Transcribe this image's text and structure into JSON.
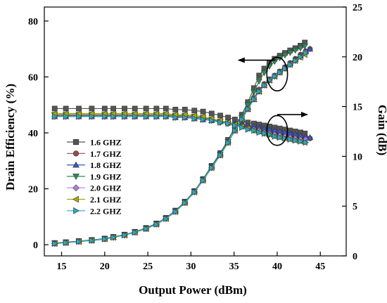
{
  "chart_data": {
    "type": "line",
    "xlabel": "Output Power (dBm)",
    "ylabel_left": "Drain Efficiency (%)",
    "ylabel_right": "Gain (dB)",
    "xlim": [
      13,
      48
    ],
    "ylim_left": [
      -4,
      85
    ],
    "ylim_right": [
      0,
      25
    ],
    "xticks": [
      15,
      20,
      25,
      30,
      35,
      40,
      45
    ],
    "yticks_left": [
      0,
      20,
      40,
      60,
      80
    ],
    "yticks_right": [
      0,
      5,
      10,
      15,
      20,
      25
    ],
    "grid": false,
    "legend_position": "center-left",
    "series": [
      {
        "name": "1.6 GHZ",
        "color": "#555555",
        "marker": "square",
        "x": [
          14.2,
          15.5,
          17,
          18.5,
          20,
          21,
          22.3,
          23.5,
          24.8,
          26,
          27.1,
          28.2,
          29.3,
          30.4,
          31.4,
          32.4,
          33.4,
          34.3,
          35.1,
          35.9,
          36.6,
          37.3,
          37.9,
          38.5,
          39.1,
          39.7,
          40.3,
          40.9,
          41.5,
          42.1,
          42.7,
          43.2
        ],
        "efficiency": [
          0.6,
          0.9,
          1.3,
          1.7,
          2.2,
          2.8,
          3.6,
          4.6,
          6,
          7.6,
          9.6,
          12.2,
          15.4,
          19.2,
          23.5,
          28.2,
          32.8,
          37.5,
          42,
          46.5,
          51,
          56,
          60.5,
          63,
          65,
          66.5,
          67.6,
          68.6,
          69.5,
          70.3,
          71.2,
          72.3
        ],
        "gain": [
          14.8,
          14.8,
          14.8,
          14.8,
          14.8,
          14.8,
          14.8,
          14.8,
          14.8,
          14.8,
          14.8,
          14.7,
          14.7,
          14.6,
          14.5,
          14.3,
          14.1,
          13.9,
          13.7,
          13.6,
          13.4,
          13.3,
          13.2,
          13.1,
          13.0,
          12.9,
          12.8,
          12.7,
          12.6,
          12.5,
          12.4,
          12.3
        ]
      },
      {
        "name": "1.7 GHZ",
        "color": "#9e4a4a",
        "marker": "circle",
        "x": [
          14.2,
          15.5,
          17,
          18.5,
          20,
          21,
          22.3,
          23.5,
          24.8,
          26,
          27.1,
          28.2,
          29.3,
          30.4,
          31.4,
          32.4,
          33.4,
          34.3,
          35.1,
          35.9,
          36.6,
          37.3,
          37.9,
          38.5,
          39.1,
          39.7,
          40.3,
          40.9,
          41.5,
          42.1,
          42.7,
          43.3,
          43.8
        ],
        "efficiency": [
          0.5,
          0.8,
          1.2,
          1.6,
          2.1,
          2.7,
          3.5,
          4.5,
          5.8,
          7.4,
          9.4,
          12,
          15.2,
          19,
          23.2,
          27.8,
          32.3,
          36.8,
          41,
          45,
          48.8,
          52.5,
          55.5,
          57.5,
          59.2,
          60.5,
          62,
          63.5,
          65,
          66.5,
          68,
          69.2,
          70
        ],
        "gain": [
          14.1,
          14.1,
          14.1,
          14.1,
          14.1,
          14.1,
          14.1,
          14.1,
          14.1,
          14.1,
          14.1,
          14.0,
          14.0,
          13.9,
          13.8,
          13.6,
          13.5,
          13.3,
          13.2,
          13.1,
          13.0,
          12.9,
          12.8,
          12.7,
          12.6,
          12.5,
          12.4,
          12.3,
          12.2,
          12.1,
          12.0,
          11.9,
          11.8
        ]
      },
      {
        "name": "1.8 GHZ",
        "color": "#3a55c8",
        "marker": "triangle-up",
        "x": [
          14.2,
          15.5,
          17,
          18.5,
          20,
          21,
          22.3,
          23.5,
          24.8,
          26,
          27.1,
          28.2,
          29.3,
          30.4,
          31.4,
          32.4,
          33.4,
          34.3,
          35.1,
          35.9,
          36.6,
          37.3,
          37.9,
          38.5,
          39.1,
          39.7,
          40.3,
          40.9,
          41.5,
          42.1,
          42.7,
          43.3,
          43.8
        ],
        "efficiency": [
          0.5,
          0.8,
          1.2,
          1.6,
          2.1,
          2.7,
          3.5,
          4.5,
          5.8,
          7.4,
          9.4,
          12,
          15.2,
          19,
          23.2,
          27.8,
          32.3,
          36.8,
          41,
          45,
          48.5,
          52,
          54.8,
          57,
          58.8,
          60.3,
          61.8,
          63.3,
          64.8,
          66.2,
          67.6,
          69,
          70
        ],
        "gain": [
          14.0,
          14.0,
          14.0,
          14.0,
          14.0,
          14.0,
          14.0,
          14.0,
          14.0,
          14.0,
          14.0,
          13.9,
          13.9,
          13.8,
          13.7,
          13.6,
          13.5,
          13.4,
          13.3,
          13.2,
          13.1,
          13.0,
          12.9,
          12.8,
          12.7,
          12.6,
          12.5,
          12.4,
          12.3,
          12.2,
          12.1,
          12.0,
          11.9
        ]
      },
      {
        "name": "1.9 GHZ",
        "color": "#2e8b57",
        "marker": "triangle-down",
        "x": [
          14.2,
          15.5,
          17,
          18.5,
          20,
          21,
          22.3,
          23.5,
          24.8,
          26,
          27.1,
          28.2,
          29.3,
          30.4,
          31.4,
          32.4,
          33.4,
          34.3,
          35.1,
          35.9,
          36.6,
          37.3,
          37.9,
          38.5,
          39.1,
          39.7,
          40.3,
          40.9,
          41.5,
          42.1,
          42.7,
          43.2
        ],
        "efficiency": [
          0.5,
          0.8,
          1.2,
          1.6,
          2.1,
          2.7,
          3.5,
          4.5,
          5.8,
          7.4,
          9.4,
          12,
          15.2,
          19,
          23.2,
          27.8,
          32.3,
          36.8,
          41,
          45.5,
          50,
          54.5,
          58.5,
          61.5,
          63.8,
          65.5,
          66.8,
          67.8,
          68.7,
          69.5,
          70.3,
          71
        ],
        "gain": [
          14.2,
          14.2,
          14.2,
          14.2,
          14.2,
          14.2,
          14.2,
          14.2,
          14.2,
          14.2,
          14.2,
          14.1,
          14.1,
          14.0,
          13.9,
          13.7,
          13.5,
          13.3,
          13.1,
          13.0,
          12.8,
          12.6,
          12.5,
          12.3,
          12.2,
          12.1,
          12.0,
          11.9,
          11.8,
          11.7,
          11.6,
          11.5
        ]
      },
      {
        "name": "2.0 GHZ",
        "color": "#b57edc",
        "marker": "diamond",
        "x": [
          14.2,
          15.5,
          17,
          18.5,
          20,
          21,
          22.3,
          23.5,
          24.8,
          26,
          27.1,
          28.2,
          29.3,
          30.4,
          31.4,
          32.4,
          33.4,
          34.3,
          35.1,
          35.9,
          36.6,
          37.3,
          37.9,
          38.5,
          39.1,
          39.7,
          40.3,
          40.9,
          41.5,
          42.1,
          42.7,
          43.3
        ],
        "efficiency": [
          0.4,
          0.7,
          1.1,
          1.5,
          2,
          2.6,
          3.4,
          4.4,
          5.7,
          7.3,
          9.3,
          11.8,
          15,
          18.8,
          23,
          27.5,
          32,
          36.5,
          40.8,
          44.8,
          48.5,
          52,
          54.8,
          57,
          58.8,
          60.2,
          61.6,
          63,
          64.4,
          65.8,
          67.2,
          68.8
        ],
        "gain": [
          14.0,
          14.0,
          14.0,
          14.0,
          14.0,
          14.0,
          14.0,
          14.0,
          14.0,
          14.0,
          14.0,
          13.9,
          13.9,
          13.8,
          13.7,
          13.6,
          13.4,
          13.3,
          13.1,
          13.0,
          12.8,
          12.7,
          12.6,
          12.4,
          12.3,
          12.2,
          12.1,
          12.0,
          11.9,
          11.8,
          11.7,
          11.7
        ]
      },
      {
        "name": "2.1 GHZ",
        "color": "#a8a800",
        "marker": "triangle-left",
        "x": [
          14.2,
          15.5,
          17,
          18.5,
          20,
          21,
          22.3,
          23.5,
          24.8,
          26,
          27.1,
          28.2,
          29.3,
          30.4,
          31.4,
          32.4,
          33.4,
          34.3,
          35.1,
          35.9,
          36.6,
          37.3,
          37.9,
          38.5,
          39.1,
          39.7,
          40.3,
          40.9,
          41.5,
          42.1,
          42.7,
          43.2
        ],
        "efficiency": [
          0.4,
          0.7,
          1.1,
          1.5,
          2,
          2.6,
          3.4,
          4.4,
          5.7,
          7.3,
          9.3,
          11.8,
          15,
          18.8,
          23,
          27.5,
          32,
          36.5,
          40.8,
          44.8,
          48.5,
          52,
          54.8,
          57,
          58.8,
          60.2,
          61.6,
          63,
          64.4,
          65.8,
          67,
          68
        ],
        "gain": [
          14.3,
          14.3,
          14.3,
          14.3,
          14.3,
          14.3,
          14.3,
          14.3,
          14.3,
          14.3,
          14.3,
          14.2,
          14.2,
          14.1,
          14.0,
          13.8,
          13.6,
          13.4,
          13.2,
          13.0,
          12.8,
          12.6,
          12.5,
          12.3,
          12.2,
          12.0,
          11.9,
          11.8,
          11.7,
          11.6,
          11.5,
          11.4
        ]
      },
      {
        "name": "2.2 GHZ",
        "color": "#2aa8c4",
        "marker": "triangle-right",
        "x": [
          14.2,
          15.5,
          17,
          18.5,
          20,
          21,
          22.3,
          23.5,
          24.8,
          26,
          27.1,
          28.2,
          29.3,
          30.4,
          31.4,
          32.4,
          33.4,
          34.3,
          35.1,
          35.9,
          36.6,
          37.3,
          37.9,
          38.5,
          39.1,
          39.7,
          40.3,
          40.9,
          41.5,
          42.1,
          42.7,
          43.3
        ],
        "efficiency": [
          0.4,
          0.7,
          1.1,
          1.5,
          2,
          2.6,
          3.4,
          4.4,
          5.7,
          7.3,
          9.3,
          11.8,
          15,
          18.8,
          23,
          27.5,
          32,
          36.5,
          40.8,
          44.8,
          48.5,
          52,
          54.8,
          57,
          58.8,
          60.2,
          61.6,
          63,
          64.4,
          65.8,
          67.2,
          68.6
        ],
        "gain": [
          14.0,
          14.0,
          14.0,
          14.0,
          14.0,
          14.0,
          14.0,
          14.0,
          14.0,
          14.0,
          14.0,
          13.9,
          13.9,
          13.8,
          13.7,
          13.6,
          13.4,
          13.3,
          13.1,
          12.9,
          12.7,
          12.6,
          12.4,
          12.3,
          12.2,
          12.0,
          11.9,
          11.8,
          11.7,
          11.6,
          11.5,
          11.4
        ]
      }
    ],
    "annotations": [
      {
        "type": "ellipse",
        "target": "efficiency",
        "cx": 40,
        "cy_left": 61,
        "rx_data": 1.2,
        "ry_left": 6
      },
      {
        "type": "arrow",
        "direction": "left",
        "target_axis": "left",
        "from_x": 39.8,
        "to_x": 35.5,
        "y_left": 66
      },
      {
        "type": "ellipse",
        "target": "gain",
        "cx": 40,
        "cy_right": 12.6,
        "rx_data": 1.2,
        "ry_right": 1.5
      },
      {
        "type": "arrow",
        "direction": "right",
        "target_axis": "right",
        "from_x": 40,
        "to_x": 43.5,
        "y_right": 14.2
      }
    ]
  }
}
